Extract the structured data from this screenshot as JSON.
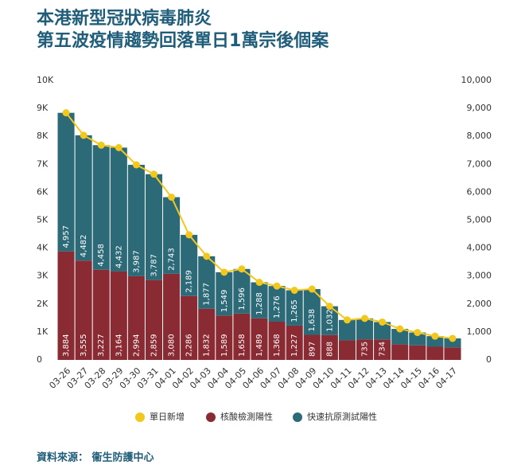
{
  "chart_data": {
    "type": "bar",
    "stacked": true,
    "title": "本港新型冠狀病毒肺炎",
    "subtitle": "第五波疫情趨勢回落單日1萬宗後個案",
    "source": "資料來源： 衞生防護中心",
    "categories": [
      "03-26",
      "03-27",
      "03-28",
      "03-29",
      "03-30",
      "03-31",
      "04-01",
      "04-02",
      "04-03",
      "04-04",
      "04-05",
      "04-06",
      "04-07",
      "04-08",
      "04-09",
      "04-10",
      "04-11",
      "04-12",
      "04-13",
      "04-14",
      "04-15",
      "04-16",
      "04-17"
    ],
    "series": [
      {
        "name": "單日新增",
        "type": "line",
        "axis": "y2",
        "color": "#f2c81e",
        "values": [
          8841,
          8037,
          7685,
          7596,
          6981,
          6646,
          5823,
          4475,
          3709,
          3138,
          3254,
          2777,
          2644,
          2492,
          2535,
          1920,
          1430,
          1485,
          1354,
          1110,
          980,
          850,
          770
        ]
      },
      {
        "name": "核酸檢測陽性",
        "color": "#8a2b33",
        "values": [
          3884,
          3555,
          3227,
          3164,
          2994,
          2859,
          3080,
          2286,
          1832,
          1589,
          1658,
          1489,
          1368,
          1227,
          897,
          888,
          700,
          735,
          734,
          560,
          520,
          470,
          450
        ],
        "value_labels": [
          "3,884",
          "3,555",
          "3,227",
          "3,164",
          "2,994",
          "2,859",
          "3,080",
          "2,286",
          "1,832",
          "1,589",
          "1,658",
          "1,489",
          "1,368",
          "1,227",
          "897",
          "888",
          null,
          "735",
          "734",
          null,
          null,
          null,
          null
        ]
      },
      {
        "name": "快速抗原測試陽性",
        "color": "#2c6a78",
        "values": [
          4957,
          4482,
          4458,
          4432,
          3987,
          3787,
          2743,
          2189,
          1877,
          1549,
          1596,
          1288,
          1276,
          1265,
          1638,
          1032,
          730,
          750,
          620,
          550,
          460,
          380,
          320
        ],
        "value_labels": [
          "4,957",
          "4,482",
          "4,458",
          "4,432",
          "3,987",
          "3,787",
          "2,743",
          "2,189",
          "1,877",
          "1,549",
          "1,596",
          "1,288",
          "1,276",
          "1,265",
          "1,638",
          "1,032",
          null,
          null,
          null,
          null,
          null,
          null,
          null
        ]
      }
    ],
    "ylim": [
      0,
      10000
    ],
    "yticks": [
      {
        "value": 0,
        "label": "0"
      },
      {
        "value": 1000,
        "label": "1K"
      },
      {
        "value": 2000,
        "label": "2K"
      },
      {
        "value": 3000,
        "label": "3K"
      },
      {
        "value": 4000,
        "label": "4K"
      },
      {
        "value": 5000,
        "label": "5K"
      },
      {
        "value": 6000,
        "label": "6K"
      },
      {
        "value": 7000,
        "label": "7K"
      },
      {
        "value": 8000,
        "label": "8K"
      },
      {
        "value": 9000,
        "label": "9K"
      },
      {
        "value": 10000,
        "label": "10K"
      }
    ],
    "y2lim": [
      0,
      10000
    ],
    "y2ticks": [
      0,
      {
        "value": 1000,
        "label": "1,000"
      },
      {
        "value": 2000,
        "label": "2,000"
      },
      {
        "value": 3000,
        "label": "3,000"
      },
      {
        "value": 4000,
        "label": "4,000"
      },
      {
        "value": 5000,
        "label": "5,000"
      },
      {
        "value": 6000,
        "label": "6,000"
      },
      {
        "value": 7000,
        "label": "7,000"
      },
      {
        "value": 8000,
        "label": "8,000"
      },
      {
        "value": 9000,
        "label": "9,000"
      },
      {
        "value": 10000,
        "label": "10,000"
      }
    ]
  }
}
